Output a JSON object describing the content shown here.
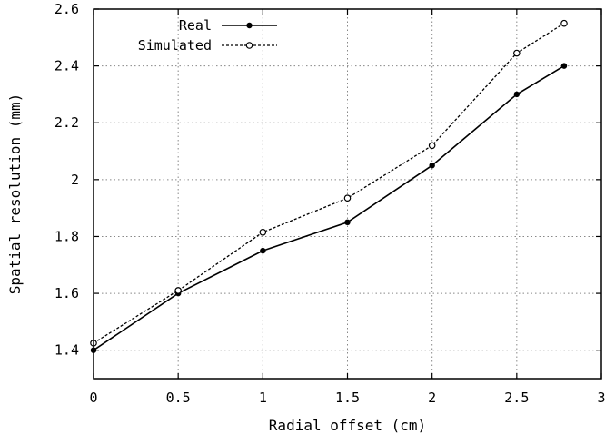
{
  "chart_data": {
    "type": "line",
    "xlabel": "Radial offset (cm)",
    "ylabel": "Spatial resolution (mm)",
    "xlim": [
      0,
      3
    ],
    "ylim": [
      1.3,
      2.6
    ],
    "xticks": [
      0,
      0.5,
      1,
      1.5,
      2,
      2.5,
      3
    ],
    "yticks": [
      1.4,
      1.6,
      1.8,
      2.0,
      2.2,
      2.4,
      2.6
    ],
    "xtick_labels": [
      "0",
      "0.5",
      "1",
      "1.5",
      "2",
      "2.5",
      "3"
    ],
    "ytick_labels": [
      "1.4",
      "1.6",
      "1.8",
      "2",
      "2.2",
      "2.4",
      "2.6"
    ],
    "grid": true,
    "grid_style": "dotted",
    "legend_position": "top-left",
    "series": [
      {
        "name": "Real",
        "style": "solid",
        "marker": "filled-circle",
        "color": "#000000",
        "x": [
          0,
          0.5,
          1,
          1.5,
          2,
          2.5,
          2.78
        ],
        "y": [
          1.4,
          1.6,
          1.75,
          1.85,
          2.05,
          2.3,
          2.4
        ]
      },
      {
        "name": "Simulated",
        "style": "dashed",
        "marker": "open-circle",
        "color": "#000000",
        "x": [
          0,
          0.5,
          1,
          1.5,
          2,
          2.5,
          2.78
        ],
        "y": [
          1.425,
          1.61,
          1.815,
          1.935,
          2.12,
          2.445,
          2.55
        ]
      }
    ]
  }
}
